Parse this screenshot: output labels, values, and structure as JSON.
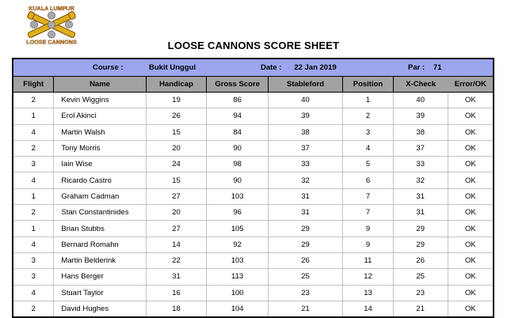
{
  "logo": {
    "top_text": "KUALA LUMPUR",
    "bottom_text": "LOOSE CANNONS"
  },
  "title": "LOOSE CANNONS SCORE SHEET",
  "info_bar": {
    "course_label": "Course :",
    "course_value": "Bukit Unggul",
    "date_label": "Date :",
    "date_value": "22 Jan 2019",
    "par_label": "Par :",
    "par_value": "71"
  },
  "table": {
    "columns": [
      "Flight",
      "Name",
      "Handicap",
      "Gross Score",
      "Stableford",
      "Position",
      "X-Check",
      "Error/OK"
    ],
    "rows": [
      [
        "2",
        "Kevin Wiggins",
        "19",
        "86",
        "40",
        "1",
        "40",
        "OK"
      ],
      [
        "1",
        "Erol Akinci",
        "26",
        "94",
        "39",
        "2",
        "39",
        "OK"
      ],
      [
        "4",
        "Martin Walsh",
        "15",
        "84",
        "38",
        "3",
        "38",
        "OK"
      ],
      [
        "2",
        "Tony Morris",
        "20",
        "90",
        "37",
        "4",
        "37",
        "OK"
      ],
      [
        "3",
        "Iain Wise",
        "24",
        "98",
        "33",
        "5",
        "33",
        "OK"
      ],
      [
        "4",
        "Ricardo Castro",
        "15",
        "90",
        "32",
        "6",
        "32",
        "OK"
      ],
      [
        "1",
        "Graham Cadman",
        "27",
        "103",
        "31",
        "7",
        "31",
        "OK"
      ],
      [
        "2",
        "Stan Constantinides",
        "20",
        "96",
        "31",
        "7",
        "31",
        "OK"
      ],
      [
        "1",
        "Brian Stubbs",
        "27",
        "105",
        "29",
        "9",
        "29",
        "OK"
      ],
      [
        "4",
        "Bernard Romahn",
        "14",
        "92",
        "29",
        "9",
        "29",
        "OK"
      ],
      [
        "3",
        "Martin Belderink",
        "22",
        "103",
        "26",
        "11",
        "26",
        "OK"
      ],
      [
        "3",
        "Hans Berger",
        "31",
        "113",
        "25",
        "12",
        "25",
        "OK"
      ],
      [
        "4",
        "Stuart Taylor",
        "16",
        "100",
        "23",
        "13",
        "23",
        "OK"
      ],
      [
        "2",
        "David Hughes",
        "18",
        "104",
        "21",
        "14",
        "21",
        "OK"
      ]
    ]
  },
  "colors": {
    "info_bar_bg": "#9ca6ee",
    "header_bg": "#a2a2a2",
    "logo_gold": "#dfae1e",
    "logo_outline": "#7a4a00",
    "logo_text": "#c79a1c",
    "cannonball_gray": "#a8a8a8"
  }
}
